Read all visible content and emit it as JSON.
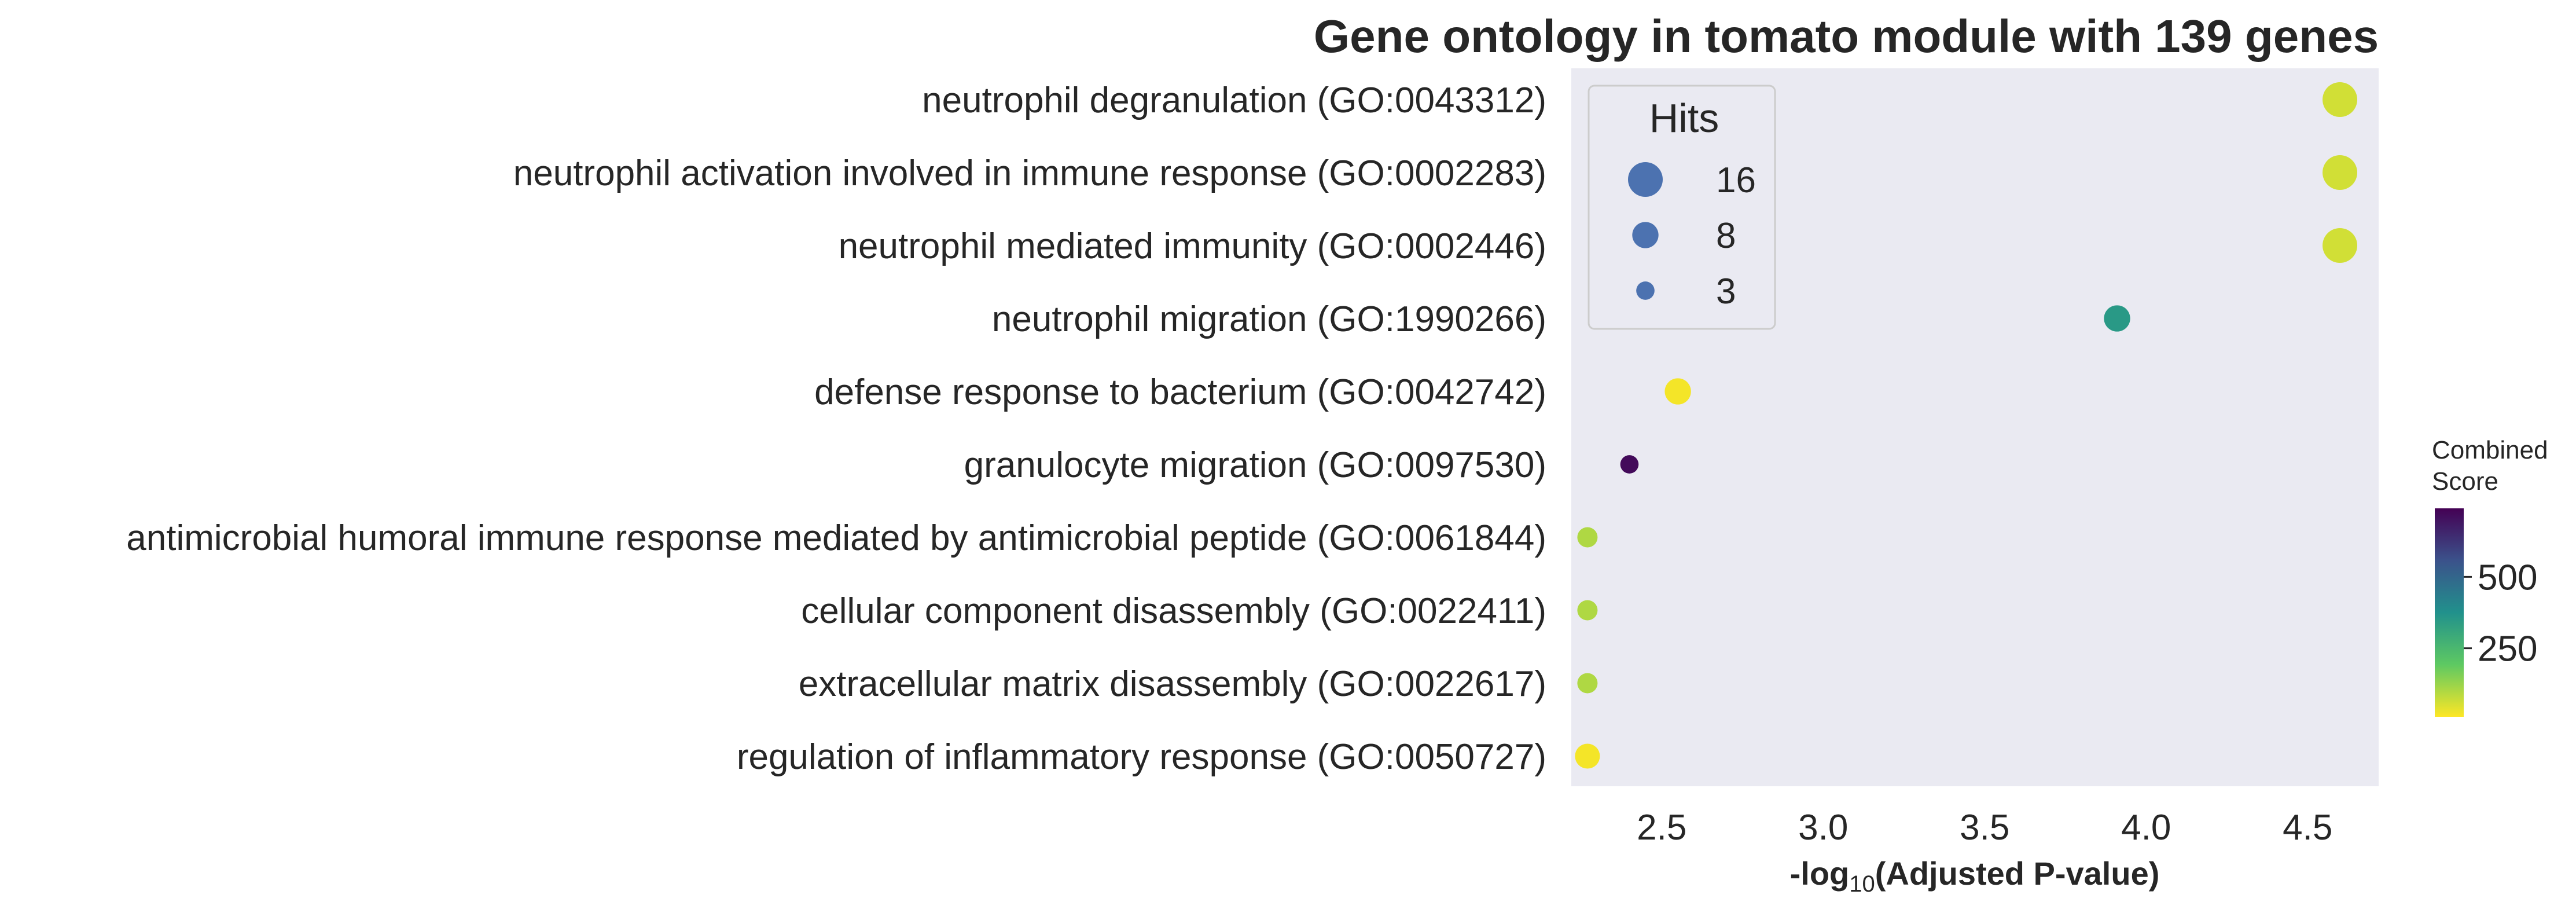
{
  "chart_data": {
    "type": "scatter",
    "title": "Gene ontology in tomato module with 139 genes",
    "xlabel_prefix": "-log",
    "xlabel_sub": "10",
    "xlabel_suffix": "(Adjusted P-value)",
    "xlim": [
      2.22,
      4.72
    ],
    "xticks": [
      2.5,
      3.0,
      3.5,
      4.0,
      4.5
    ],
    "xtick_labels": [
      "2.5",
      "3.0",
      "3.5",
      "4.0",
      "4.5"
    ],
    "grid": false,
    "categories": [
      "neutrophil degranulation (GO:0043312)",
      "neutrophil activation involved in immune response (GO:0002283)",
      "neutrophil mediated immunity (GO:0002446)",
      "neutrophil migration (GO:1990266)",
      "defense response to bacterium (GO:0042742)",
      "granulocyte migration (GO:0097530)",
      "antimicrobial humoral immune response mediated by antimicrobial peptide (GO:0061844)",
      "cellular component disassembly (GO:0022411)",
      "extracellular matrix disassembly (GO:0022617)",
      "regulation of inflammatory response (GO:0050727)"
    ],
    "points": [
      {
        "x": 4.6,
        "hits": 16,
        "score": 60
      },
      {
        "x": 4.6,
        "hits": 16,
        "score": 60
      },
      {
        "x": 4.6,
        "hits": 16,
        "score": 60
      },
      {
        "x": 3.91,
        "hits": 8,
        "score": 350
      },
      {
        "x": 2.55,
        "hits": 8,
        "score": 20
      },
      {
        "x": 2.4,
        "hits": 3,
        "score": 720
      },
      {
        "x": 2.27,
        "hits": 4,
        "score": 100
      },
      {
        "x": 2.27,
        "hits": 4,
        "score": 100
      },
      {
        "x": 2.27,
        "hits": 4,
        "score": 100
      },
      {
        "x": 2.27,
        "hits": 7,
        "score": 20
      }
    ],
    "size_legend": {
      "title": "Hits",
      "entries": [
        {
          "label": "16",
          "hits": 16
        },
        {
          "label": "8",
          "hits": 8
        },
        {
          "label": "3",
          "hits": 3
        }
      ],
      "placement": "upper-left inside plot"
    },
    "colorbar": {
      "title_line1": "Combined",
      "title_line2": "Score",
      "range": [
        10,
        740
      ],
      "ticks": [
        500,
        250
      ],
      "tick_labels": [
        "500",
        "250"
      ],
      "colormap": "viridis (reversed: yellow=low, purple=high)",
      "placement": "right"
    },
    "colors": {
      "plot_background": "#eaeaf2",
      "legend_marker": "#4c72b0",
      "viridis_stops": [
        "#440154",
        "#3b528b",
        "#21918c",
        "#5ec962",
        "#fde725"
      ]
    }
  }
}
